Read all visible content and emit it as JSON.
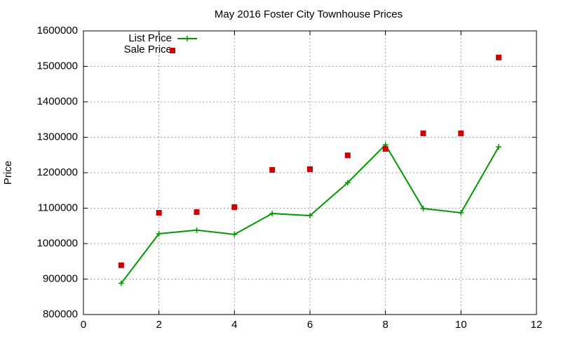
{
  "chart_data": {
    "type": "line",
    "title": "May 2016 Foster City Townhouse Prices",
    "y_label": "Price",
    "x": [
      1,
      2,
      3,
      4,
      5,
      6,
      7,
      8,
      9,
      10,
      11
    ],
    "series": [
      {
        "name": "List Price",
        "color": "#009900",
        "style": "linespoints",
        "values": [
          888000,
          1028000,
          1038000,
          1026000,
          1085000,
          1079000,
          1172000,
          1279000,
          1099000,
          1087000,
          1273000
        ]
      },
      {
        "name": "Sale Price",
        "color": "#cc0000",
        "style": "points",
        "values": [
          939000,
          1087000,
          1089000,
          1103000,
          1208000,
          1210000,
          1249000,
          1267000,
          1311000,
          1311000,
          1525000
        ]
      }
    ],
    "xlim": [
      0,
      12
    ],
    "xticks": [
      0,
      2,
      4,
      6,
      8,
      10,
      12
    ],
    "ylim": [
      800000,
      1600000
    ],
    "yticks": [
      800000,
      900000,
      1000000,
      1100000,
      1200000,
      1300000,
      1400000,
      1500000,
      1600000
    ],
    "grid": true,
    "legend": "top-left"
  }
}
